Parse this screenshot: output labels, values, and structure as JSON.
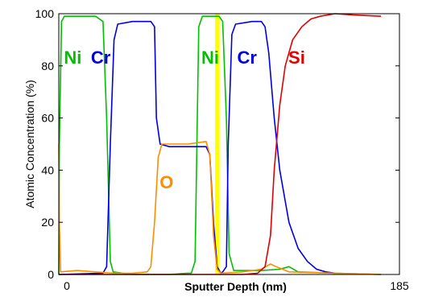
{
  "chart_data": {
    "type": "line",
    "xlabel": "Sputter Depth (nm)",
    "ylabel": "Atomic Concentration (%)",
    "xlim": [
      0,
      185
    ],
    "ylim": [
      0,
      100
    ],
    "x_ticks": [
      "0",
      "185"
    ],
    "y_ticks": [
      "0",
      "20",
      "40",
      "60",
      "80",
      "100"
    ],
    "grid": false,
    "highlight_band": {
      "x_start": 84.9,
      "x_end": 87.3,
      "color": "#ffff00"
    },
    "series": [
      {
        "name": "Ni",
        "color": "#00c000",
        "points": [
          [
            0,
            0
          ],
          [
            0.3,
            50
          ],
          [
            1.5,
            97
          ],
          [
            3,
            99
          ],
          [
            10,
            99
          ],
          [
            20,
            99
          ],
          [
            24,
            97
          ],
          [
            26,
            60
          ],
          [
            28,
            5
          ],
          [
            29.5,
            1
          ],
          [
            40,
            0
          ],
          [
            60,
            0
          ],
          [
            70,
            0.5
          ],
          [
            72,
            0.5
          ],
          [
            74,
            5
          ],
          [
            75,
            50
          ],
          [
            76,
            95
          ],
          [
            78,
            99
          ],
          [
            87,
            99
          ],
          [
            89,
            97
          ],
          [
            91,
            60
          ],
          [
            92.5,
            8
          ],
          [
            95,
            1.5
          ],
          [
            110,
            1.5
          ],
          [
            120,
            2
          ],
          [
            125,
            3
          ],
          [
            130,
            1
          ],
          [
            150,
            0.5
          ],
          [
            175,
            0
          ]
        ]
      },
      {
        "name": "Cr",
        "color": "#0000e0",
        "points": [
          [
            0,
            0
          ],
          [
            24,
            0.5
          ],
          [
            26,
            3
          ],
          [
            28,
            50
          ],
          [
            30,
            90
          ],
          [
            32,
            96
          ],
          [
            40,
            97
          ],
          [
            50,
            97
          ],
          [
            52,
            95
          ],
          [
            53,
            60
          ],
          [
            55,
            50
          ],
          [
            60,
            49
          ],
          [
            80,
            49
          ],
          [
            82,
            46
          ],
          [
            84,
            20
          ],
          [
            86,
            3
          ],
          [
            88,
            0.5
          ],
          [
            89,
            1
          ],
          [
            91,
            3
          ],
          [
            92,
            50
          ],
          [
            94,
            92
          ],
          [
            96,
            96
          ],
          [
            105,
            97
          ],
          [
            110,
            97
          ],
          [
            112,
            95
          ],
          [
            114,
            85
          ],
          [
            117,
            60
          ],
          [
            120,
            40
          ],
          [
            125,
            20
          ],
          [
            130,
            10
          ],
          [
            135,
            5
          ],
          [
            140,
            2
          ],
          [
            145,
            1
          ],
          [
            150,
            0.5
          ]
        ]
      },
      {
        "name": "O",
        "color": "#ff8c00",
        "points": [
          [
            0,
            50
          ],
          [
            0.3,
            20
          ],
          [
            1,
            1
          ],
          [
            10,
            1.5
          ],
          [
            20,
            1
          ],
          [
            30,
            0.5
          ],
          [
            40,
            0.5
          ],
          [
            48,
            1
          ],
          [
            50,
            3
          ],
          [
            52,
            20
          ],
          [
            54,
            45
          ],
          [
            56,
            50
          ],
          [
            70,
            50
          ],
          [
            80,
            51
          ],
          [
            82,
            46
          ],
          [
            84,
            15
          ],
          [
            86,
            2
          ],
          [
            88,
            0.5
          ],
          [
            100,
            1
          ],
          [
            110,
            2
          ],
          [
            115,
            4
          ],
          [
            118,
            3
          ],
          [
            125,
            1
          ],
          [
            150,
            0.5
          ],
          [
            175,
            0
          ]
        ]
      },
      {
        "name": "Si",
        "color": "#e00000",
        "points": [
          [
            0,
            0
          ],
          [
            50,
            0
          ],
          [
            100,
            0
          ],
          [
            108,
            0.5
          ],
          [
            112,
            3
          ],
          [
            115,
            15
          ],
          [
            117,
            40
          ],
          [
            120,
            65
          ],
          [
            123,
            80
          ],
          [
            127,
            90
          ],
          [
            132,
            95
          ],
          [
            137,
            98
          ],
          [
            142,
            99
          ],
          [
            150,
            100
          ],
          [
            160,
            99.5
          ],
          [
            175,
            99
          ]
        ]
      }
    ],
    "series_labels": [
      {
        "text": "Ni",
        "color": "#00c000",
        "x": 7.6,
        "y": 83.3
      },
      {
        "text": "Cr",
        "color": "#0000e0",
        "x": 22.8,
        "y": 83.3
      },
      {
        "text": "O",
        "color": "#ff8c00",
        "x": 58.5,
        "y": 35.5
      },
      {
        "text": "Ni",
        "color": "#00c000",
        "x": 82.2,
        "y": 83.3
      },
      {
        "text": "Cr",
        "color": "#0000e0",
        "x": 102.2,
        "y": 83.3
      },
      {
        "text": "Si",
        "color": "#e00000",
        "x": 129.2,
        "y": 83.3
      }
    ]
  }
}
